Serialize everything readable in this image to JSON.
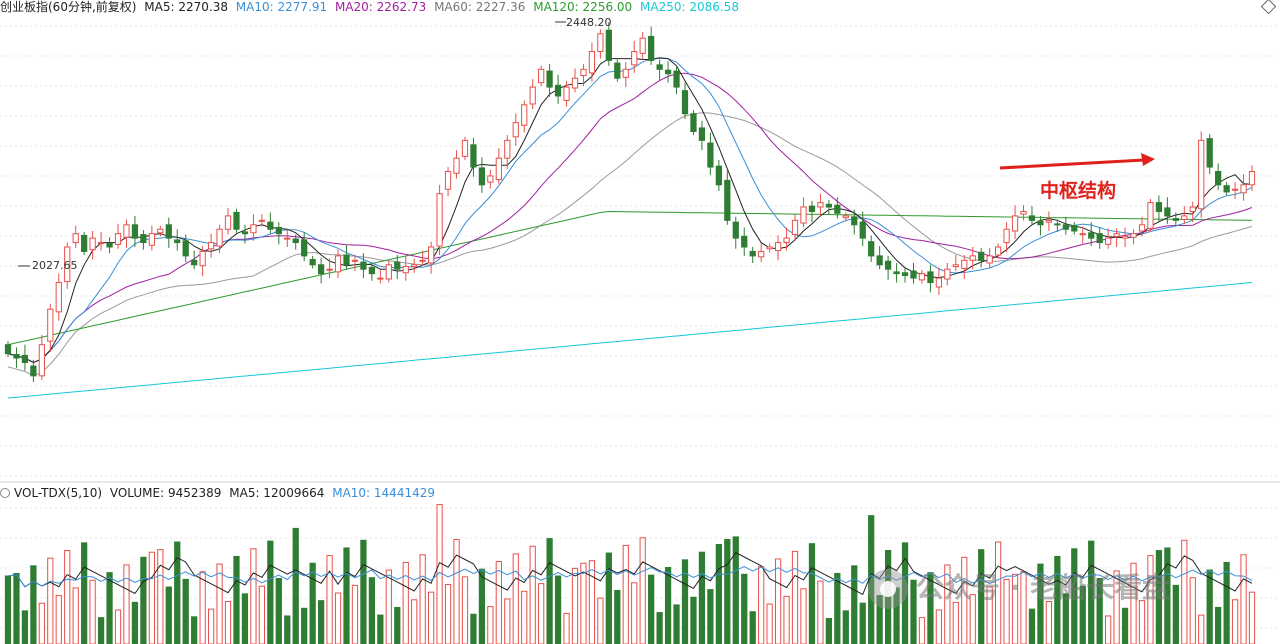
{
  "header": {
    "title": "创业板指(60分钟,前复权)",
    "ma5": "MA5: 2270.38",
    "ma10": "MA10: 2277.91",
    "ma20": "MA20: 2262.73",
    "ma60": "MA60: 2227.36",
    "ma120": "MA120: 2256.00",
    "ma250": "MA250: 2086.58"
  },
  "volume_header": {
    "title": "VOL-TDX(5,10)",
    "volume": "VOLUME: 9452389",
    "ma5": "MA5: 12009664",
    "ma10": "MA10: 14441429"
  },
  "annotation": {
    "text": "中枢结构"
  },
  "watermark": {
    "text": "公众号 · 老船长看盘"
  },
  "price_marks": {
    "high": "2448.20",
    "low": "2027.65"
  },
  "colors": {
    "up": "#e8504a",
    "down": "#2e7d32",
    "ma5": "#222222",
    "ma10": "#3a8fd8",
    "ma20": "#a020a0",
    "ma60": "#9a9a9a",
    "ma120": "#2e9a2e",
    "ma250": "#18c7d8",
    "annotation": "#e0211b"
  },
  "chart_data": {
    "type": "candlestick",
    "title": "创业板指(60分钟,前复权)",
    "candles_close": [
      2080,
      2075,
      2070,
      2055,
      2090,
      2130,
      2160,
      2200,
      2215,
      2195,
      2210,
      2205,
      2200,
      2215,
      2225,
      2210,
      2205,
      2215,
      2220,
      2210,
      2205,
      2190,
      2180,
      2195,
      2205,
      2220,
      2235,
      2220,
      2215,
      2225,
      2230,
      2220,
      2215,
      2210,
      2205,
      2190,
      2180,
      2170,
      2175,
      2190,
      2180,
      2185,
      2175,
      2170,
      2165,
      2180,
      2175,
      2178,
      2180,
      2185,
      2200,
      2260,
      2285,
      2300,
      2320,
      2290,
      2270,
      2280,
      2300,
      2320,
      2340,
      2360,
      2380,
      2400,
      2380,
      2370,
      2380,
      2390,
      2400,
      2420,
      2440,
      2410,
      2390,
      2400,
      2420,
      2435,
      2410,
      2400,
      2395,
      2380,
      2350,
      2330,
      2320,
      2290,
      2270,
      2230,
      2210,
      2200,
      2190,
      2195,
      2200,
      2205,
      2210,
      2230,
      2245,
      2240,
      2250,
      2245,
      2238,
      2235,
      2225,
      2210,
      2190,
      2180,
      2175,
      2170,
      2168,
      2165,
      2170,
      2160,
      2165,
      2175,
      2180,
      2185,
      2190,
      2185,
      2190,
      2200,
      2220,
      2235,
      2240,
      2230,
      2225,
      2230,
      2225,
      2220,
      2218,
      2215,
      2210,
      2205,
      2210,
      2215,
      2212,
      2215,
      2225,
      2250,
      2240,
      2235,
      2230,
      2235,
      2245,
      2320,
      2290,
      2270,
      2262,
      2265,
      2270,
      2285
    ],
    "ma120_range": [
      2090,
      2230
    ],
    "ma250_range": [
      2030,
      2160
    ],
    "price_high": 2448.2,
    "price_low": 2027.65,
    "volume_series": [
      "VOLUME",
      "MA5",
      "MA10"
    ],
    "annotations": [
      "中枢结构"
    ]
  }
}
